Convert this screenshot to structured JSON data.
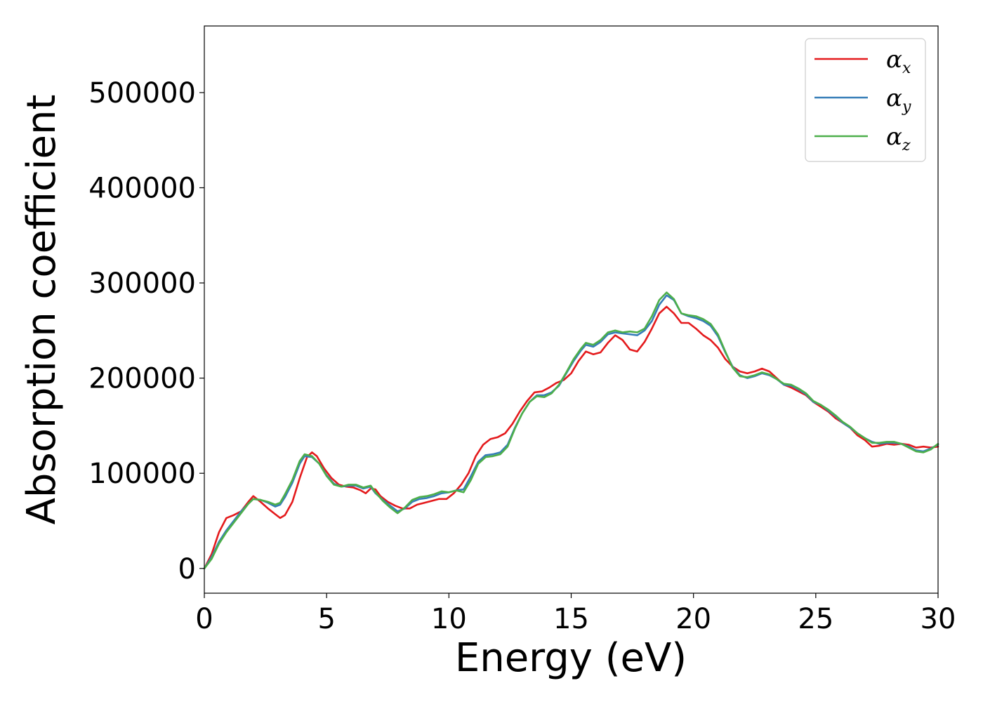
{
  "chart_data": {
    "type": "line",
    "title": "",
    "xlabel": "Energy (eV)",
    "ylabel": "Absorption coefficient",
    "xlim": [
      0,
      30
    ],
    "ylim": [
      -26000,
      570000
    ],
    "x_ticks": [
      "0",
      "5",
      "10",
      "15",
      "20",
      "25",
      "30"
    ],
    "y_ticks": [
      "0",
      "100000",
      "200000",
      "300000",
      "400000",
      "500000"
    ],
    "grid": false,
    "legend_position": "top-right",
    "series": [
      {
        "name": "αx",
        "symbol": "α",
        "subscript": "x",
        "color": "#e41a1c",
        "points": [
          [
            0,
            0
          ],
          [
            0.3,
            15000
          ],
          [
            0.6,
            38000
          ],
          [
            0.9,
            53000
          ],
          [
            1.2,
            56000
          ],
          [
            1.5,
            60000
          ],
          [
            1.8,
            70000
          ],
          [
            2.0,
            76000
          ],
          [
            2.3,
            70000
          ],
          [
            2.6,
            63000
          ],
          [
            2.9,
            57000
          ],
          [
            3.1,
            53000
          ],
          [
            3.3,
            56000
          ],
          [
            3.6,
            70000
          ],
          [
            3.9,
            95000
          ],
          [
            4.2,
            117000
          ],
          [
            4.4,
            122000
          ],
          [
            4.6,
            118000
          ],
          [
            4.9,
            105000
          ],
          [
            5.2,
            95000
          ],
          [
            5.5,
            88000
          ],
          [
            5.8,
            86000
          ],
          [
            6.1,
            85000
          ],
          [
            6.4,
            82000
          ],
          [
            6.6,
            79000
          ],
          [
            6.8,
            84000
          ],
          [
            7.0,
            83000
          ],
          [
            7.2,
            76000
          ],
          [
            7.5,
            70000
          ],
          [
            7.8,
            66000
          ],
          [
            8.1,
            63000
          ],
          [
            8.4,
            63000
          ],
          [
            8.7,
            67000
          ],
          [
            9.0,
            69000
          ],
          [
            9.3,
            71000
          ],
          [
            9.6,
            73000
          ],
          [
            9.9,
            73000
          ],
          [
            10.2,
            79000
          ],
          [
            10.5,
            88000
          ],
          [
            10.8,
            100000
          ],
          [
            11.1,
            118000
          ],
          [
            11.4,
            130000
          ],
          [
            11.7,
            136000
          ],
          [
            12.0,
            138000
          ],
          [
            12.3,
            142000
          ],
          [
            12.6,
            152000
          ],
          [
            12.9,
            165000
          ],
          [
            13.2,
            176000
          ],
          [
            13.5,
            185000
          ],
          [
            13.8,
            186000
          ],
          [
            14.1,
            190000
          ],
          [
            14.4,
            195000
          ],
          [
            14.7,
            198000
          ],
          [
            15.0,
            205000
          ],
          [
            15.3,
            218000
          ],
          [
            15.6,
            228000
          ],
          [
            15.9,
            225000
          ],
          [
            16.2,
            227000
          ],
          [
            16.5,
            237000
          ],
          [
            16.8,
            245000
          ],
          [
            17.1,
            240000
          ],
          [
            17.4,
            230000
          ],
          [
            17.7,
            228000
          ],
          [
            18.0,
            238000
          ],
          [
            18.3,
            252000
          ],
          [
            18.6,
            268000
          ],
          [
            18.9,
            275000
          ],
          [
            19.2,
            268000
          ],
          [
            19.5,
            258000
          ],
          [
            19.8,
            258000
          ],
          [
            20.1,
            252000
          ],
          [
            20.4,
            245000
          ],
          [
            20.7,
            240000
          ],
          [
            21.0,
            232000
          ],
          [
            21.3,
            220000
          ],
          [
            21.6,
            212000
          ],
          [
            21.9,
            207000
          ],
          [
            22.2,
            205000
          ],
          [
            22.5,
            207000
          ],
          [
            22.8,
            210000
          ],
          [
            23.1,
            207000
          ],
          [
            23.4,
            200000
          ],
          [
            23.7,
            193000
          ],
          [
            24.0,
            190000
          ],
          [
            24.3,
            186000
          ],
          [
            24.6,
            182000
          ],
          [
            24.9,
            175000
          ],
          [
            25.2,
            170000
          ],
          [
            25.5,
            165000
          ],
          [
            25.8,
            158000
          ],
          [
            26.1,
            153000
          ],
          [
            26.4,
            148000
          ],
          [
            26.7,
            140000
          ],
          [
            27.0,
            135000
          ],
          [
            27.3,
            128000
          ],
          [
            27.6,
            129000
          ],
          [
            27.9,
            131000
          ],
          [
            28.2,
            130000
          ],
          [
            28.5,
            131000
          ],
          [
            28.8,
            130000
          ],
          [
            29.1,
            127000
          ],
          [
            29.4,
            128000
          ],
          [
            29.7,
            127000
          ],
          [
            30.0,
            128000
          ]
        ]
      },
      {
        "name": "αy",
        "symbol": "α",
        "subscript": "y",
        "color": "#377eb8",
        "points": [
          [
            0,
            0
          ],
          [
            0.3,
            12000
          ],
          [
            0.6,
            28000
          ],
          [
            0.9,
            40000
          ],
          [
            1.2,
            50000
          ],
          [
            1.5,
            60000
          ],
          [
            1.8,
            68000
          ],
          [
            2.0,
            73000
          ],
          [
            2.3,
            72000
          ],
          [
            2.6,
            69000
          ],
          [
            2.9,
            65000
          ],
          [
            3.1,
            67000
          ],
          [
            3.3,
            75000
          ],
          [
            3.6,
            90000
          ],
          [
            3.9,
            110000
          ],
          [
            4.1,
            118000
          ],
          [
            4.4,
            117000
          ],
          [
            4.7,
            110000
          ],
          [
            5.0,
            98000
          ],
          [
            5.3,
            89000
          ],
          [
            5.6,
            86000
          ],
          [
            5.9,
            87000
          ],
          [
            6.2,
            87000
          ],
          [
            6.5,
            84000
          ],
          [
            6.8,
            86000
          ],
          [
            7.0,
            79000
          ],
          [
            7.3,
            72000
          ],
          [
            7.6,
            66000
          ],
          [
            7.9,
            60000
          ],
          [
            8.2,
            63000
          ],
          [
            8.5,
            70000
          ],
          [
            8.8,
            73000
          ],
          [
            9.1,
            74000
          ],
          [
            9.4,
            76000
          ],
          [
            9.7,
            79000
          ],
          [
            10.0,
            80000
          ],
          [
            10.3,
            82000
          ],
          [
            10.6,
            83000
          ],
          [
            10.9,
            97000
          ],
          [
            11.2,
            112000
          ],
          [
            11.5,
            119000
          ],
          [
            11.8,
            120000
          ],
          [
            12.1,
            122000
          ],
          [
            12.4,
            130000
          ],
          [
            12.7,
            148000
          ],
          [
            13.0,
            163000
          ],
          [
            13.3,
            175000
          ],
          [
            13.6,
            182000
          ],
          [
            13.9,
            182000
          ],
          [
            14.2,
            185000
          ],
          [
            14.5,
            192000
          ],
          [
            14.8,
            205000
          ],
          [
            15.1,
            218000
          ],
          [
            15.4,
            229000
          ],
          [
            15.6,
            235000
          ],
          [
            15.9,
            233000
          ],
          [
            16.2,
            238000
          ],
          [
            16.5,
            246000
          ],
          [
            16.8,
            248000
          ],
          [
            17.1,
            247000
          ],
          [
            17.4,
            246000
          ],
          [
            17.7,
            245000
          ],
          [
            18.0,
            250000
          ],
          [
            18.3,
            260000
          ],
          [
            18.6,
            277000
          ],
          [
            18.9,
            287000
          ],
          [
            19.2,
            282000
          ],
          [
            19.5,
            268000
          ],
          [
            19.8,
            265000
          ],
          [
            20.1,
            263000
          ],
          [
            20.4,
            260000
          ],
          [
            20.7,
            255000
          ],
          [
            21.0,
            244000
          ],
          [
            21.3,
            227000
          ],
          [
            21.6,
            212000
          ],
          [
            21.9,
            203000
          ],
          [
            22.2,
            200000
          ],
          [
            22.5,
            202000
          ],
          [
            22.8,
            205000
          ],
          [
            23.1,
            203000
          ],
          [
            23.4,
            199000
          ],
          [
            23.7,
            193000
          ],
          [
            24.0,
            192000
          ],
          [
            24.3,
            188000
          ],
          [
            24.6,
            183000
          ],
          [
            24.9,
            175000
          ],
          [
            25.2,
            172000
          ],
          [
            25.5,
            166000
          ],
          [
            25.8,
            160000
          ],
          [
            26.1,
            153000
          ],
          [
            26.4,
            148000
          ],
          [
            26.7,
            142000
          ],
          [
            27.0,
            137000
          ],
          [
            27.3,
            133000
          ],
          [
            27.6,
            131000
          ],
          [
            27.9,
            132000
          ],
          [
            28.2,
            132000
          ],
          [
            28.5,
            131000
          ],
          [
            28.8,
            128000
          ],
          [
            29.1,
            124000
          ],
          [
            29.4,
            123000
          ],
          [
            29.7,
            126000
          ],
          [
            30.0,
            130000
          ]
        ]
      },
      {
        "name": "αz",
        "symbol": "α",
        "subscript": "z",
        "color": "#4daf4a",
        "points": [
          [
            0,
            0
          ],
          [
            0.3,
            10000
          ],
          [
            0.6,
            26000
          ],
          [
            0.9,
            38000
          ],
          [
            1.2,
            48000
          ],
          [
            1.5,
            58000
          ],
          [
            1.8,
            68000
          ],
          [
            2.0,
            73000
          ],
          [
            2.3,
            72000
          ],
          [
            2.6,
            70000
          ],
          [
            2.9,
            67000
          ],
          [
            3.1,
            69000
          ],
          [
            3.3,
            78000
          ],
          [
            3.6,
            93000
          ],
          [
            3.9,
            113000
          ],
          [
            4.1,
            120000
          ],
          [
            4.4,
            118000
          ],
          [
            4.7,
            110000
          ],
          [
            5.0,
            97000
          ],
          [
            5.3,
            88000
          ],
          [
            5.6,
            86000
          ],
          [
            5.9,
            88000
          ],
          [
            6.2,
            88000
          ],
          [
            6.5,
            85000
          ],
          [
            6.8,
            87000
          ],
          [
            7.0,
            80000
          ],
          [
            7.3,
            71000
          ],
          [
            7.6,
            64000
          ],
          [
            7.9,
            58000
          ],
          [
            8.2,
            64000
          ],
          [
            8.5,
            72000
          ],
          [
            8.8,
            75000
          ],
          [
            9.1,
            76000
          ],
          [
            9.4,
            78000
          ],
          [
            9.7,
            81000
          ],
          [
            10.0,
            80000
          ],
          [
            10.3,
            82000
          ],
          [
            10.6,
            80000
          ],
          [
            10.9,
            93000
          ],
          [
            11.2,
            110000
          ],
          [
            11.5,
            117000
          ],
          [
            11.8,
            118000
          ],
          [
            12.1,
            120000
          ],
          [
            12.4,
            128000
          ],
          [
            12.7,
            147000
          ],
          [
            13.0,
            163000
          ],
          [
            13.3,
            175000
          ],
          [
            13.6,
            181000
          ],
          [
            13.9,
            180000
          ],
          [
            14.2,
            184000
          ],
          [
            14.5,
            193000
          ],
          [
            14.8,
            206000
          ],
          [
            15.1,
            220000
          ],
          [
            15.4,
            231000
          ],
          [
            15.6,
            237000
          ],
          [
            15.9,
            235000
          ],
          [
            16.2,
            240000
          ],
          [
            16.5,
            248000
          ],
          [
            16.8,
            250000
          ],
          [
            17.1,
            248000
          ],
          [
            17.4,
            249000
          ],
          [
            17.7,
            248000
          ],
          [
            18.0,
            252000
          ],
          [
            18.3,
            265000
          ],
          [
            18.6,
            282000
          ],
          [
            18.9,
            290000
          ],
          [
            19.2,
            283000
          ],
          [
            19.5,
            268000
          ],
          [
            19.8,
            266000
          ],
          [
            20.1,
            265000
          ],
          [
            20.4,
            262000
          ],
          [
            20.7,
            257000
          ],
          [
            21.0,
            246000
          ],
          [
            21.3,
            228000
          ],
          [
            21.6,
            211000
          ],
          [
            21.9,
            202000
          ],
          [
            22.2,
            201000
          ],
          [
            22.5,
            203000
          ],
          [
            22.8,
            206000
          ],
          [
            23.1,
            204000
          ],
          [
            23.4,
            199000
          ],
          [
            23.7,
            194000
          ],
          [
            24.0,
            193000
          ],
          [
            24.3,
            189000
          ],
          [
            24.6,
            184000
          ],
          [
            24.9,
            176000
          ],
          [
            25.2,
            172000
          ],
          [
            25.5,
            167000
          ],
          [
            25.8,
            161000
          ],
          [
            26.1,
            154000
          ],
          [
            26.4,
            149000
          ],
          [
            26.7,
            142000
          ],
          [
            27.0,
            137000
          ],
          [
            27.3,
            132000
          ],
          [
            27.6,
            132000
          ],
          [
            27.9,
            133000
          ],
          [
            28.2,
            133000
          ],
          [
            28.5,
            131000
          ],
          [
            28.8,
            127000
          ],
          [
            29.1,
            123000
          ],
          [
            29.4,
            122000
          ],
          [
            29.7,
            125000
          ],
          [
            30.0,
            131000
          ]
        ]
      }
    ]
  }
}
